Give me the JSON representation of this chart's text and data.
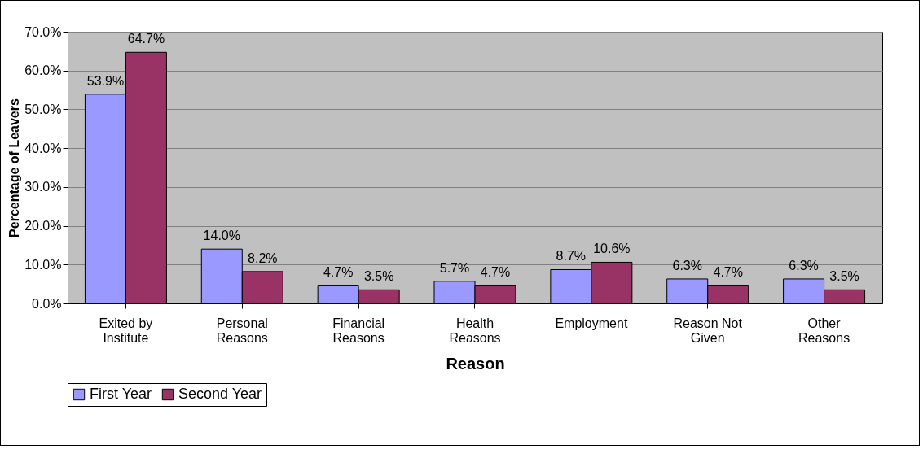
{
  "chart_data": {
    "type": "bar",
    "xlabel": "Reason",
    "ylabel": "Percentage of Leavers",
    "categories": [
      "Exited by Institute",
      "Personal Reasons",
      "Financial Reasons",
      "Health Reasons",
      "Employment",
      "Reason Not Given",
      "Other Reasons"
    ],
    "series": [
      {
        "name": "First Year",
        "color": "#9999ff",
        "values": [
          53.9,
          14.0,
          4.7,
          5.7,
          8.7,
          6.3,
          6.3
        ],
        "value_labels": [
          "53.9%",
          "14.0%",
          "4.7%",
          "5.7%",
          "8.7%",
          "6.3%",
          "6.3%"
        ]
      },
      {
        "name": "Second Year",
        "color": "#993366",
        "values": [
          64.7,
          8.2,
          3.5,
          4.7,
          10.6,
          4.7,
          3.5
        ],
        "value_labels": [
          "64.7%",
          "8.2%",
          "3.5%",
          "4.7%",
          "10.6%",
          "4.7%",
          "3.5%"
        ]
      }
    ],
    "ylim": [
      0,
      70
    ],
    "yticks": [
      {
        "value": 0,
        "label": "0.0%"
      },
      {
        "value": 10,
        "label": "10.0%"
      },
      {
        "value": 20,
        "label": "20.0%"
      },
      {
        "value": 30,
        "label": "30.0%"
      },
      {
        "value": 40,
        "label": "40.0%"
      },
      {
        "value": 50,
        "label": "50.0%"
      },
      {
        "value": 60,
        "label": "60.0%"
      },
      {
        "value": 70,
        "label": "70.0%"
      }
    ],
    "grid": "y",
    "legend": "bottom"
  }
}
